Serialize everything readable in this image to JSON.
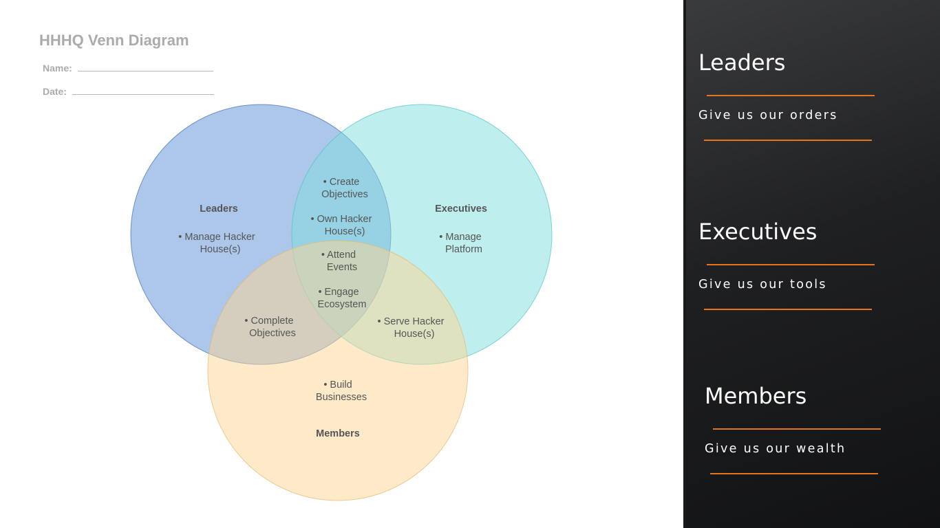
{
  "document": {
    "title": "HHHQ Venn Diagram",
    "name_label": "Name:",
    "date_label": "Date:"
  },
  "venn": {
    "sets": [
      {
        "name": "Leaders",
        "color": "#5b8fd6"
      },
      {
        "name": "Executives",
        "color": "#7fdede"
      },
      {
        "name": "Members",
        "color": "#fdd594"
      }
    ],
    "regions": {
      "leaders_only": [
        "• Manage Hacker",
        "House(s)"
      ],
      "executives_only": [
        "• Manage",
        "Platform"
      ],
      "members_only": [
        "• Build",
        "Businesses"
      ],
      "leaders_executives": [
        "• Create",
        "Objectives",
        "• Own Hacker",
        "House(s)"
      ],
      "leaders_members": [
        "• Complete",
        "Objectives"
      ],
      "executives_members": [
        "• Serve Hacker",
        "House(s)"
      ],
      "all_three": [
        "• Attend",
        "Events",
        "• Engage",
        "Ecosystem"
      ]
    }
  },
  "panel": {
    "accent_color": "#e8741b",
    "groups": [
      {
        "title": "Leaders",
        "subtitle": "Give us our orders"
      },
      {
        "title": "Executives",
        "subtitle": "Give us our tools"
      },
      {
        "title": "Members",
        "subtitle": "Give us our wealth"
      }
    ]
  }
}
